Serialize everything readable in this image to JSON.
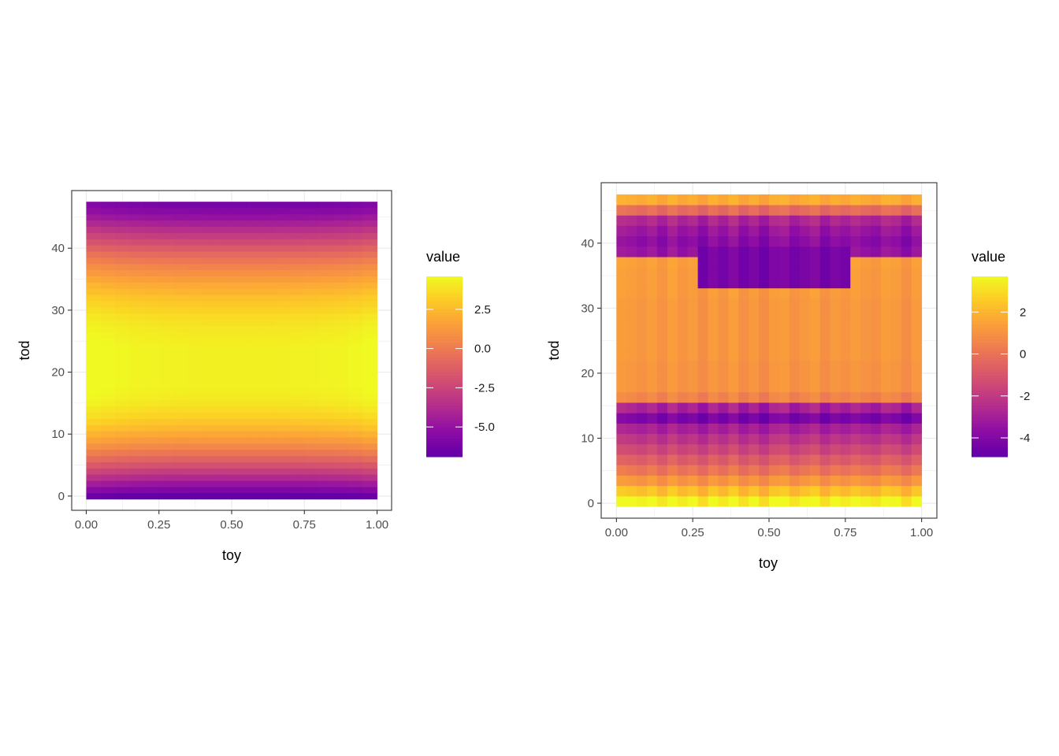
{
  "colors": {
    "palette": "plasma",
    "background": "#ffffff",
    "panel_border": "#333333",
    "grid": "#ebebeb",
    "text": "#000000",
    "tick_text": "#4d4d4d"
  },
  "chart_data": [
    {
      "type": "heatmap",
      "title": "",
      "xlabel": "toy",
      "ylabel": "tod",
      "xlim": [
        -0.05,
        1.05
      ],
      "ylim": [
        -2.3,
        49.3
      ],
      "x_ticks": [
        0.0,
        0.25,
        0.5,
        0.75,
        1.0
      ],
      "x_tick_labels": [
        "0.00",
        "0.25",
        "0.50",
        "0.75",
        "1.00"
      ],
      "y_ticks": [
        0,
        10,
        20,
        30,
        40
      ],
      "y_tick_labels": [
        "0",
        "10",
        "20",
        "30",
        "40"
      ],
      "grid": true,
      "legend_position": "right",
      "legend": {
        "title": "value",
        "range": [
          -6.9,
          4.6
        ],
        "ticks": [
          2.5,
          0.0,
          -2.5,
          -5.0
        ],
        "tick_labels": [
          "2.5",
          "0.0",
          "-2.5",
          "-5.0"
        ]
      },
      "tiles": {
        "toy_count": 20,
        "tod_count": 48,
        "toy_range": [
          0,
          1
        ],
        "tod_range": [
          0,
          47
        ]
      },
      "rows_by_tod": [
        -6.9,
        -5.8,
        -4.8,
        -3.8,
        -2.8,
        -1.9,
        -1.0,
        -0.2,
        0.6,
        1.3,
        1.9,
        2.5,
        3.0,
        3.4,
        3.7,
        4.0,
        4.2,
        4.3,
        4.4,
        4.4,
        4.4,
        4.4,
        4.4,
        4.4,
        4.4,
        4.3,
        4.2,
        4.1,
        3.9,
        3.7,
        3.4,
        3.1,
        2.8,
        2.4,
        2.0,
        1.5,
        1.0,
        0.5,
        -0.1,
        -0.7,
        -1.4,
        -2.1,
        -2.8,
        -3.5,
        -4.2,
        -4.9,
        -5.5,
        -6.0
      ],
      "toy_column_profile": [
        0.35,
        0.22,
        0.12,
        0.05,
        0.0,
        -0.04,
        -0.07,
        -0.09,
        -0.1,
        -0.1,
        -0.1,
        -0.1,
        -0.1,
        -0.09,
        -0.07,
        -0.04,
        0.0,
        0.05,
        0.14,
        0.3
      ]
    },
    {
      "type": "heatmap",
      "title": "",
      "xlabel": "toy",
      "ylabel": "tod",
      "xlim": [
        -0.05,
        1.05
      ],
      "ylim": [
        -2.3,
        49.3
      ],
      "x_ticks": [
        0.0,
        0.25,
        0.5,
        0.75,
        1.0
      ],
      "x_tick_labels": [
        "0.00",
        "0.25",
        "0.50",
        "0.75",
        "1.00"
      ],
      "y_ticks": [
        0,
        10,
        20,
        30,
        40
      ],
      "y_tick_labels": [
        "0",
        "10",
        "20",
        "30",
        "40"
      ],
      "grid": true,
      "legend_position": "right",
      "legend": {
        "title": "value",
        "range": [
          -4.9,
          3.7
        ],
        "ticks": [
          2,
          0,
          -2,
          -4
        ],
        "tick_labels": [
          "2",
          "0",
          "-2",
          "-4"
        ]
      },
      "tiles": {
        "toy_count": 30,
        "tod_count": 30,
        "toy_range": [
          0,
          1
        ],
        "tod_range": [
          0,
          47
        ]
      },
      "rows_by_tod": [
        3.5,
        2.2,
        1.0,
        0.0,
        -0.8,
        -1.6,
        -2.3,
        -3.0,
        -4.3,
        -3.0,
        0.5,
        1.0,
        1.0,
        1.0,
        1.1,
        1.1,
        1.1,
        1.1,
        1.1,
        1.1,
        1.2,
        1.2,
        1.2,
        1.3,
        -3.5,
        -3.8,
        -3.4,
        -2.8,
        -0.3,
        1.7
      ],
      "row_profile_amplitude": [
        0.6,
        0.5,
        0.4,
        0.4,
        0.4,
        0.4,
        0.4,
        0.4,
        0.5,
        0.6,
        0.4,
        0.3,
        0.3,
        0.3,
        0.3,
        0.3,
        0.3,
        0.3,
        0.3,
        0.3,
        0.3,
        0.3,
        0.3,
        0.3,
        0.5,
        0.5,
        0.5,
        0.5,
        0.4,
        0.3
      ],
      "toy_column_profile": [
        0.8,
        0.5,
        0.0,
        0.7,
        -0.4,
        0.9,
        -0.2,
        0.4,
        -0.8,
        0.6,
        -0.3,
        0.9,
        -0.6,
        0.3,
        -0.9,
        0.5,
        0.8,
        -0.5,
        0.2,
        0.9,
        -0.7,
        0.4,
        -0.2,
        0.6,
        0.0,
        -0.4,
        0.7,
        0.3,
        -0.8,
        0.5
      ],
      "trough_overlay": {
        "tod_range": [
          33,
          39
        ],
        "toy_range": [
          0.27,
          0.77
        ],
        "value": -4.3
      }
    }
  ]
}
